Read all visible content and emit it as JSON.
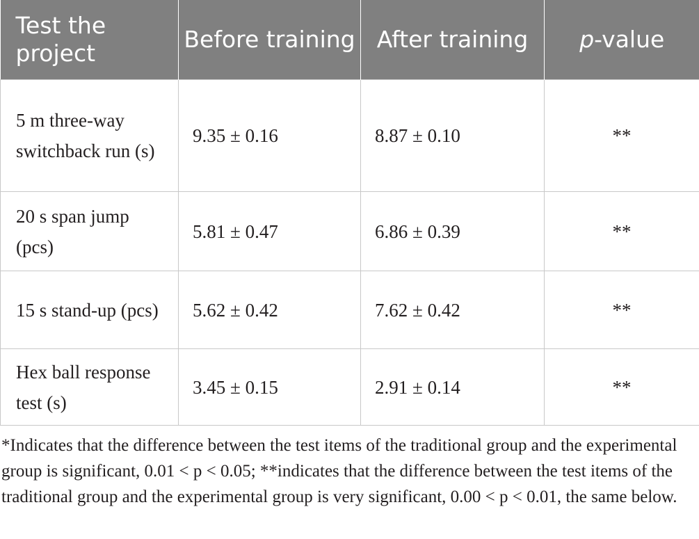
{
  "table": {
    "headers": {
      "test_project": "Test the project",
      "before_training": "Before training",
      "after_training": "After training",
      "p_value_italic": "p",
      "p_value_rest": "-value"
    },
    "rows": [
      {
        "item": "5 m three-way switchback run (s)",
        "before": "9.35 ± 0.16",
        "after": "8.87 ± 0.10",
        "p": "**"
      },
      {
        "item": "20 s span jump (pcs)",
        "before": "5.81 ± 0.47",
        "after": "6.86 ± 0.39",
        "p": "**"
      },
      {
        "item": "15 s stand-up (pcs)",
        "before": "5.62 ± 0.42",
        "after": "7.62 ± 0.42",
        "p": "**"
      },
      {
        "item": "Hex ball response test (s)",
        "before": "3.45 ± 0.15",
        "after": "2.91 ± 0.14",
        "p": "**"
      }
    ]
  },
  "footnote": "*Indicates that the difference between the test items of the traditional group and the experimental group is significant, 0.01 < p < 0.05; **indicates that the difference between the test items of the traditional group and the experimental group is very significant, 0.00 < p < 0.01, the same below."
}
